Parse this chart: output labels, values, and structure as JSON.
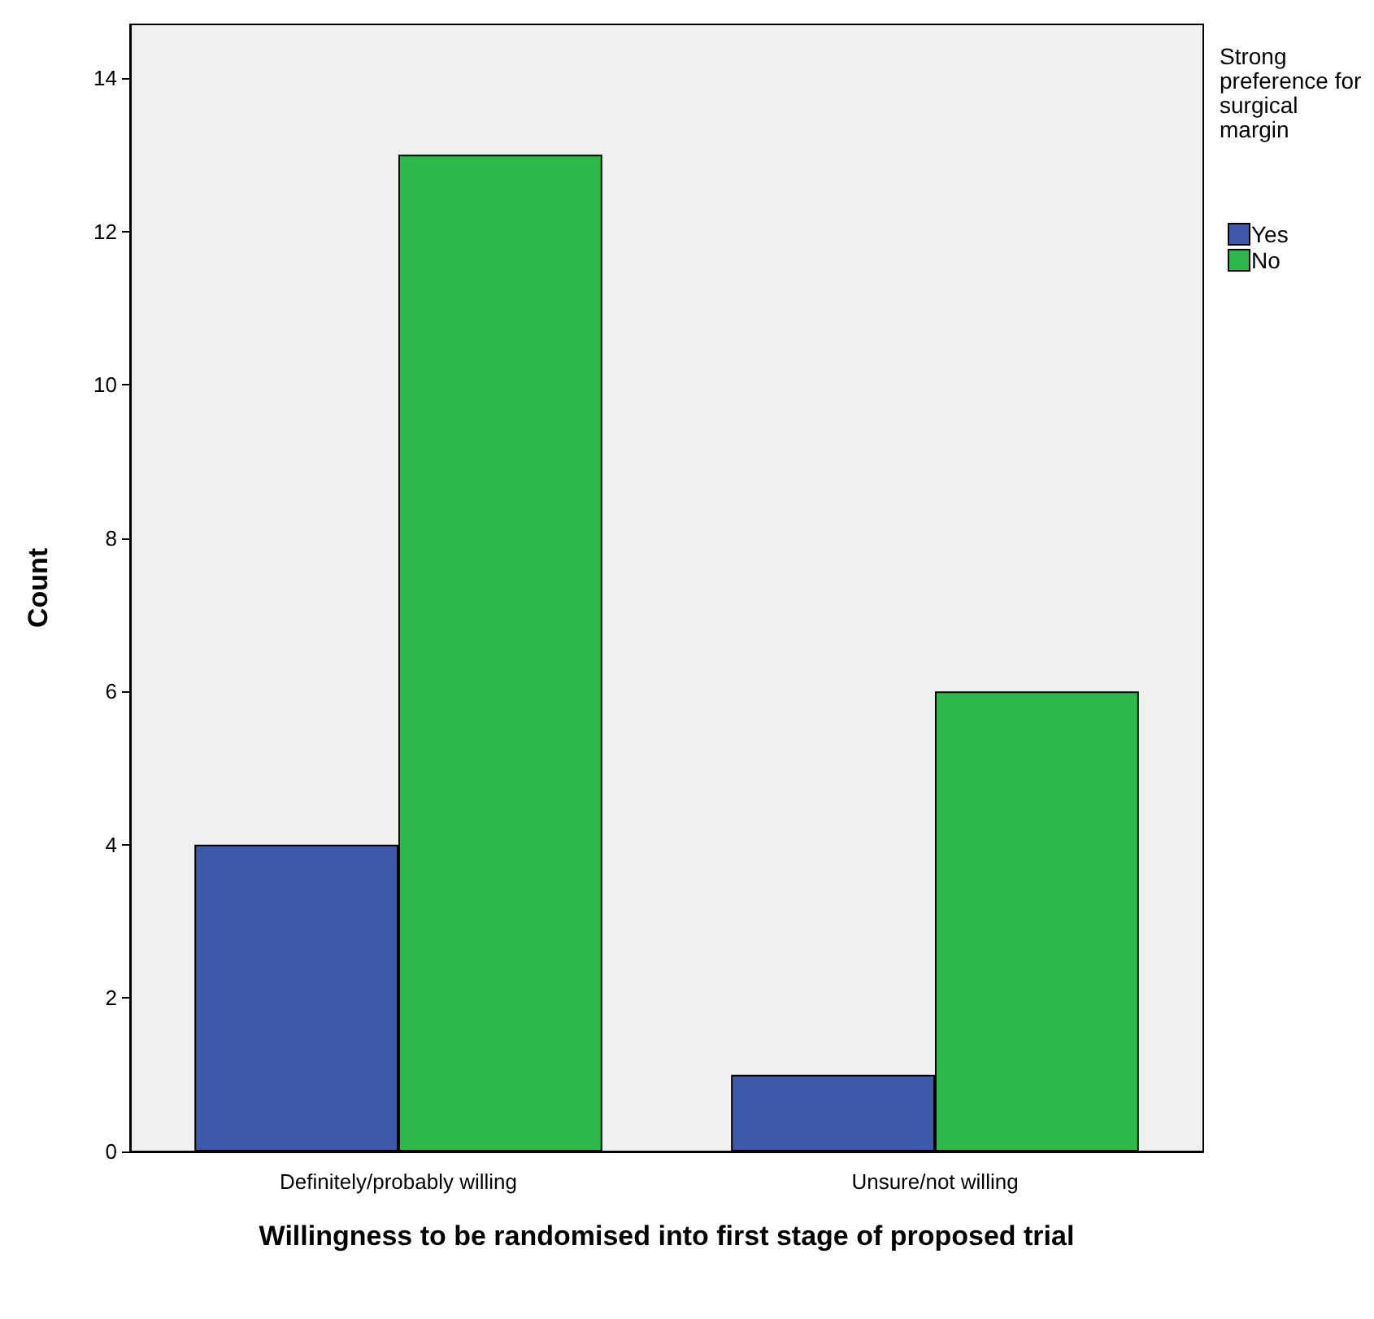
{
  "chart_data": {
    "type": "bar",
    "xlabel": "Willingness to be randomised into first stage of proposed trial",
    "ylabel": "Count",
    "legend_title": "Strong preference for surgical margin",
    "categories": [
      "Definitely/probably willing",
      "Unsure/not willing"
    ],
    "series": [
      {
        "name": "Yes",
        "color": "#3e58ac",
        "values": [
          4,
          1
        ]
      },
      {
        "name": "No",
        "color": "#2db84a",
        "values": [
          13,
          6
        ]
      }
    ],
    "ylim": [
      0,
      14.7
    ],
    "yticks": [
      0,
      2,
      4,
      6,
      8,
      10,
      12,
      14
    ],
    "grid": false,
    "legend": "top right"
  }
}
